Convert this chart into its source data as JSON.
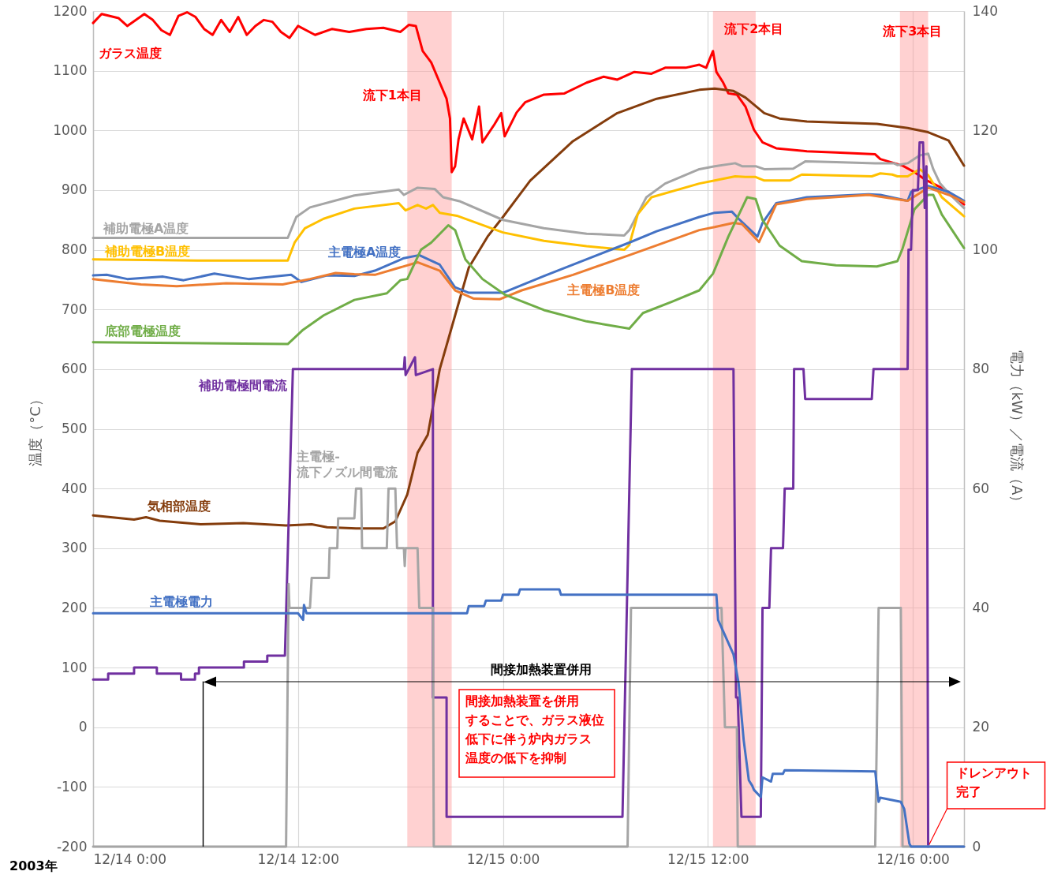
{
  "chart_data": {
    "type": "line",
    "ylabel": "温度（°C）",
    "y2label": "電力（kW）／電流（A）",
    "xlim": [
      "2003-12-14T00:00",
      "2003-12-16T03:00"
    ],
    "xticks": [
      {
        "value": "2003-12-14T00:00",
        "label": "12/14 0:00"
      },
      {
        "value": "2003-12-14T12:00",
        "label": "12/14 12:00"
      },
      {
        "value": "2003-12-15T00:00",
        "label": "12/15 0:00"
      },
      {
        "value": "2003-12-15T12:00",
        "label": "12/15 12:00"
      },
      {
        "value": "2003-12-16T00:00",
        "label": "12/16 0:00"
      }
    ],
    "ylim": [
      -200,
      1200
    ],
    "yticks": [
      -200,
      -100,
      0,
      100,
      200,
      300,
      400,
      500,
      600,
      700,
      800,
      900,
      1000,
      1100,
      1200
    ],
    "y2lim": [
      0,
      140
    ],
    "y2ticks": [
      0,
      20,
      40,
      60,
      80,
      100,
      120,
      140
    ],
    "grid": true,
    "series": [
      {
        "name": "ガラス温度",
        "color": "#ff0000",
        "x": [
          "2003-12-14T00:00",
          "2003-12-14T00:30",
          "2003-12-14T01:30",
          "2003-12-14T02:00",
          "2003-12-14T03:00",
          "2003-12-14T03:30",
          "2003-12-14T04:00",
          "2003-12-14T04:30",
          "2003-12-14T05:00",
          "2003-12-14T05:30",
          "2003-12-14T06:00",
          "2003-12-14T06:30",
          "2003-12-14T07:00",
          "2003-12-14T07:30",
          "2003-12-14T08:00",
          "2003-12-14T08:30",
          "2003-12-14T09:00",
          "2003-12-14T09:30",
          "2003-12-14T10:00",
          "2003-12-14T10:30",
          "2003-12-14T11:00",
          "2003-12-14T11:30",
          "2003-12-14T12:00",
          "2003-12-14T13:00",
          "2003-12-14T14:00",
          "2003-12-14T15:00",
          "2003-12-14T16:00",
          "2003-12-14T17:00",
          "2003-12-14T18:00",
          "2003-12-14T18:30",
          "2003-12-14T18:54",
          "2003-12-14T19:18",
          "2003-12-14T19:48",
          "2003-12-14T20:18",
          "2003-12-14T20:42",
          "2003-12-14T20:54",
          "2003-12-14T21:00",
          "2003-12-14T21:12",
          "2003-12-14T21:24",
          "2003-12-14T21:42",
          "2003-12-14T22:12",
          "2003-12-14T22:36",
          "2003-12-14T22:48",
          "2003-12-14T23:30",
          "2003-12-14T23:54",
          "2003-12-15T00:06",
          "2003-12-15T00:48",
          "2003-12-15T01:18",
          "2003-12-15T02:24",
          "2003-12-15T03:36",
          "2003-12-15T04:54",
          "2003-12-15T05:54",
          "2003-12-15T06:42",
          "2003-12-15T07:42",
          "2003-12-15T08:42",
          "2003-12-15T09:30",
          "2003-12-15T10:42",
          "2003-12-15T11:30",
          "2003-12-15T11:54",
          "2003-12-15T12:18",
          "2003-12-15T12:30",
          "2003-12-15T12:54",
          "2003-12-15T13:12",
          "2003-12-15T13:42",
          "2003-12-15T14:12",
          "2003-12-15T14:42",
          "2003-12-15T15:12",
          "2003-12-15T16:00",
          "2003-12-15T17:48",
          "2003-12-15T19:30",
          "2003-12-15T21:48",
          "2003-12-15T22:06",
          "2003-12-15T23:24",
          "2003-12-16T00:06",
          "2003-12-16T00:42",
          "2003-12-16T01:36",
          "2003-12-16T02:12",
          "2003-12-16T03:00"
        ],
        "values": [
          1180,
          1195,
          1188,
          1175,
          1195,
          1185,
          1168,
          1160,
          1192,
          1198,
          1190,
          1170,
          1160,
          1185,
          1165,
          1190,
          1160,
          1175,
          1185,
          1182,
          1165,
          1155,
          1175,
          1160,
          1170,
          1165,
          1170,
          1172,
          1165,
          1177,
          1175,
          1133,
          1114,
          1080,
          1053,
          1020,
          930,
          940,
          985,
          1020,
          985,
          1040,
          980,
          1010,
          1029,
          990,
          1030,
          1047,
          1060,
          1062,
          1080,
          1090,
          1085,
          1098,
          1095,
          1105,
          1105,
          1110,
          1105,
          1133,
          1098,
          1080,
          1062,
          1060,
          1040,
          1001,
          980,
          970,
          965,
          963,
          960,
          952,
          941,
          930,
          918,
          905,
          895,
          876
        ]
      },
      {
        "name": "気相部温度",
        "color": "#843c0c",
        "x": [
          "2003-12-14T00:00",
          "2003-12-14T02:24",
          "2003-12-14T03:06",
          "2003-12-14T03:54",
          "2003-12-14T06:18",
          "2003-12-14T08:48",
          "2003-12-14T11:18",
          "2003-12-14T12:48",
          "2003-12-14T13:42",
          "2003-12-14T15:24",
          "2003-12-14T17:00",
          "2003-12-14T17:42",
          "2003-12-14T18:24",
          "2003-12-14T19:00",
          "2003-12-14T19:36",
          "2003-12-14T20:18",
          "2003-12-14T21:12",
          "2003-12-14T22:00",
          "2003-12-14T23:06",
          "2003-12-15T00:00",
          "2003-12-15T01:36",
          "2003-12-15T04:06",
          "2003-12-15T06:42",
          "2003-12-15T09:00",
          "2003-12-15T11:30",
          "2003-12-15T12:24",
          "2003-12-15T13:30",
          "2003-12-15T14:12",
          "2003-12-15T15:18",
          "2003-12-15T16:12",
          "2003-12-15T17:48",
          "2003-12-15T21:54",
          "2003-12-15T23:42",
          "2003-12-16T00:54",
          "2003-12-16T02:06",
          "2003-12-16T03:00"
        ],
        "values": [
          355,
          348,
          352,
          346,
          340,
          342,
          338,
          340,
          335,
          333,
          333,
          345,
          390,
          460,
          490,
          600,
          690,
          770,
          822,
          855,
          916,
          982,
          1029,
          1053,
          1068,
          1070,
          1066,
          1055,
          1029,
          1020,
          1015,
          1011,
          1004,
          997,
          983,
          941
        ]
      },
      {
        "name": "補助電極A温度",
        "color": "#a5a5a5",
        "x": [
          "2003-12-14T00:00",
          "2003-12-14T11:24",
          "2003-12-14T11:54",
          "2003-12-14T12:42",
          "2003-12-14T15:18",
          "2003-12-14T17:54",
          "2003-12-14T18:12",
          "2003-12-14T19:00",
          "2003-12-14T20:00",
          "2003-12-14T20:30",
          "2003-12-14T21:30",
          "2003-12-15T00:00",
          "2003-12-15T02:24",
          "2003-12-15T04:54",
          "2003-12-15T07:06",
          "2003-12-15T07:24",
          "2003-12-15T08:24",
          "2003-12-15T09:30",
          "2003-12-15T11:30",
          "2003-12-15T12:24",
          "2003-12-15T13:36",
          "2003-12-15T14:00",
          "2003-12-15T14:48",
          "2003-12-15T15:18",
          "2003-12-15T17:00",
          "2003-12-15T17:42",
          "2003-12-15T19:30",
          "2003-12-15T21:48",
          "2003-12-15T22:54",
          "2003-12-15T23:06",
          "2003-12-15T23:42",
          "2003-12-16T00:24",
          "2003-12-16T00:54",
          "2003-12-16T01:12",
          "2003-12-16T01:36",
          "2003-12-16T02:12",
          "2003-12-16T03:00"
        ],
        "values": [
          820,
          820,
          855,
          871,
          891,
          901,
          892,
          904,
          902,
          888,
          881,
          850,
          836,
          827,
          824,
          833,
          888,
          911,
          935,
          940,
          945,
          940,
          940,
          935,
          936,
          948,
          947,
          945,
          945,
          942,
          945,
          958,
          961,
          935,
          911,
          892,
          870
        ]
      },
      {
        "name": "補助電極B温度",
        "color": "#ffc000",
        "x": [
          "2003-12-14T00:00",
          "2003-12-14T06:06",
          "2003-12-14T11:24",
          "2003-12-14T11:48",
          "2003-12-14T12:24",
          "2003-12-14T13:30",
          "2003-12-14T15:18",
          "2003-12-14T17:54",
          "2003-12-14T18:18",
          "2003-12-14T19:00",
          "2003-12-14T19:30",
          "2003-12-14T19:54",
          "2003-12-14T20:18",
          "2003-12-14T21:18",
          "2003-12-15T00:00",
          "2003-12-15T02:24",
          "2003-12-15T04:54",
          "2003-12-15T07:06",
          "2003-12-15T07:24",
          "2003-12-15T07:54",
          "2003-12-15T08:42",
          "2003-12-15T11:30",
          "2003-12-15T12:24",
          "2003-12-15T13:36",
          "2003-12-15T14:12",
          "2003-12-15T14:48",
          "2003-12-15T15:18",
          "2003-12-15T16:48",
          "2003-12-15T17:30",
          "2003-12-15T21:36",
          "2003-12-15T22:06",
          "2003-12-15T22:48",
          "2003-12-15T23:06",
          "2003-12-15T23:42",
          "2003-12-16T00:24",
          "2003-12-16T00:54",
          "2003-12-16T01:42",
          "2003-12-16T03:00"
        ],
        "values": [
          784,
          782,
          782,
          812,
          836,
          852,
          869,
          878,
          866,
          875,
          869,
          875,
          862,
          857,
          829,
          815,
          806,
          800,
          808,
          860,
          888,
          911,
          916,
          923,
          922,
          922,
          916,
          916,
          926,
          923,
          928,
          926,
          923,
          923,
          935,
          925,
          888,
          856
        ]
      },
      {
        "name": "主電極A温度",
        "color": "#4472c4",
        "x": [
          "2003-12-14T00:00",
          "2003-12-14T00:48",
          "2003-12-14T02:00",
          "2003-12-14T04:06",
          "2003-12-14T05:18",
          "2003-12-14T07:06",
          "2003-12-14T09:06",
          "2003-12-14T11:36",
          "2003-12-14T12:12",
          "2003-12-14T13:42",
          "2003-12-14T15:18",
          "2003-12-14T16:30",
          "2003-12-14T18:12",
          "2003-12-14T19:06",
          "2003-12-14T20:18",
          "2003-12-14T21:12",
          "2003-12-14T22:00",
          "2003-12-15T00:00",
          "2003-12-15T02:24",
          "2003-12-15T04:54",
          "2003-12-15T07:24",
          "2003-12-15T09:00",
          "2003-12-15T11:30",
          "2003-12-15T12:24",
          "2003-12-15T13:24",
          "2003-12-15T13:48",
          "2003-12-15T14:54",
          "2003-12-15T15:12",
          "2003-12-15T16:00",
          "2003-12-15T17:48",
          "2003-12-15T21:24",
          "2003-12-15T22:06",
          "2003-12-15T23:42",
          "2003-12-15T23:54",
          "2003-12-16T00:54",
          "2003-12-16T02:06",
          "2003-12-16T03:00"
        ],
        "values": [
          757,
          758,
          751,
          755,
          749,
          760,
          751,
          758,
          746,
          757,
          756,
          765,
          786,
          791,
          775,
          737,
          728,
          728,
          756,
          784,
          812,
          831,
          855,
          862,
          864,
          852,
          822,
          845,
          878,
          888,
          893,
          892,
          882,
          897,
          907,
          897,
          882
        ]
      },
      {
        "name": "主電極B温度",
        "color": "#ed7d31",
        "x": [
          "2003-12-14T00:00",
          "2003-12-14T02:48",
          "2003-12-14T04:54",
          "2003-12-14T07:48",
          "2003-12-14T11:06",
          "2003-12-14T12:42",
          "2003-12-14T14:12",
          "2003-12-14T15:18",
          "2003-12-14T16:30",
          "2003-12-14T19:00",
          "2003-12-14T20:18",
          "2003-12-14T21:12",
          "2003-12-14T22:18",
          "2003-12-14T23:48",
          "2003-12-15T01:06",
          "2003-12-15T04:06",
          "2003-12-15T07:24",
          "2003-12-15T11:30",
          "2003-12-15T12:24",
          "2003-12-15T13:30",
          "2003-12-15T14:00",
          "2003-12-15T15:00",
          "2003-12-15T16:00",
          "2003-12-15T17:48",
          "2003-12-15T21:24",
          "2003-12-15T23:42",
          "2003-12-16T00:54",
          "2003-12-16T02:06",
          "2003-12-16T03:00"
        ],
        "values": [
          751,
          742,
          739,
          744,
          742,
          751,
          761,
          759,
          758,
          779,
          765,
          732,
          718,
          717,
          732,
          758,
          791,
          833,
          838,
          845,
          843,
          813,
          876,
          885,
          892,
          882,
          904,
          892,
          880
        ]
      },
      {
        "name": "底部電極温度",
        "color": "#70ad47",
        "x": [
          "2003-12-14T00:00",
          "2003-12-14T11:24",
          "2003-12-14T12:18",
          "2003-12-14T13:30",
          "2003-12-14T15:18",
          "2003-12-14T17:12",
          "2003-12-14T18:00",
          "2003-12-14T18:24",
          "2003-12-14T19:12",
          "2003-12-14T19:48",
          "2003-12-14T20:48",
          "2003-12-14T21:12",
          "2003-12-14T21:48",
          "2003-12-14T22:48",
          "2003-12-15T00:06",
          "2003-12-15T02:24",
          "2003-12-15T04:54",
          "2003-12-15T07:24",
          "2003-12-15T08:12",
          "2003-12-15T09:54",
          "2003-12-15T11:30",
          "2003-12-15T12:18",
          "2003-12-15T13:12",
          "2003-12-15T14:18",
          "2003-12-15T14:48",
          "2003-12-15T15:12",
          "2003-12-15T16:12",
          "2003-12-15T17:30",
          "2003-12-15T19:30",
          "2003-12-15T21:54",
          "2003-12-15T23:06",
          "2003-12-15T23:24",
          "2003-12-16T00:06",
          "2003-12-16T00:54",
          "2003-12-16T01:12",
          "2003-12-16T01:42",
          "2003-12-16T03:00"
        ],
        "values": [
          645,
          642,
          666,
          690,
          716,
          727,
          749,
          751,
          800,
          812,
          841,
          833,
          784,
          751,
          725,
          699,
          680,
          668,
          694,
          713,
          732,
          760,
          822,
          888,
          885,
          850,
          807,
          781,
          774,
          772,
          781,
          802,
          868,
          892,
          892,
          859,
          803
        ]
      },
      {
        "name": "補助電極間電流",
        "color": "#7030a0",
        "axis": "y2",
        "x": [
          "2003-12-14T00:00",
          "2003-12-14T00:53",
          "2003-12-14T00:53",
          "2003-12-14T02:24",
          "2003-12-14T02:24",
          "2003-12-14T03:44",
          "2003-12-14T03:44",
          "2003-12-14T05:09",
          "2003-12-14T05:09",
          "2003-12-14T05:58",
          "2003-12-14T05:58",
          "2003-12-14T06:12",
          "2003-12-14T06:12",
          "2003-12-14T08:50",
          "2003-12-14T08:50",
          "2003-12-14T10:12",
          "2003-12-14T10:12",
          "2003-12-14T11:14",
          "2003-12-14T11:42",
          "2003-12-14T18:12",
          "2003-12-14T18:15",
          "2003-12-14T18:18",
          "2003-12-14T18:51",
          "2003-12-14T18:54",
          "2003-12-14T19:54",
          "2003-12-14T19:54",
          "2003-12-14T20:42",
          "2003-12-14T20:42",
          "2003-12-15T07:00",
          "2003-12-15T07:33",
          "2003-12-15T13:30",
          "2003-12-15T13:39",
          "2003-12-15T13:45",
          "2003-12-15T13:58",
          "2003-12-15T15:06",
          "2003-12-15T15:12",
          "2003-12-15T15:36",
          "2003-12-15T15:42",
          "2003-12-15T16:24",
          "2003-12-15T16:30",
          "2003-12-15T17:00",
          "2003-12-15T17:03",
          "2003-12-15T17:36",
          "2003-12-15T17:42",
          "2003-12-15T21:36",
          "2003-12-15T21:42",
          "2003-12-15T23:42",
          "2003-12-15T23:45",
          "2003-12-15T23:54",
          "2003-12-16T00:00",
          "2003-12-16T00:18",
          "2003-12-16T00:24",
          "2003-12-16T00:36",
          "2003-12-16T00:42",
          "2003-12-16T00:48",
          "2003-12-16T00:54"
        ],
        "values": [
          28,
          28,
          29,
          29,
          30,
          30,
          29,
          29,
          28,
          28,
          29,
          29,
          30,
          30,
          31,
          31,
          32,
          32,
          80,
          80,
          82,
          79,
          82,
          79,
          80,
          25,
          25,
          5,
          5,
          80,
          80,
          25,
          25,
          5,
          5,
          40,
          40,
          50,
          50,
          60,
          60,
          80,
          80,
          75,
          75,
          80,
          80,
          100,
          100,
          110,
          110,
          118,
          118,
          107,
          114,
          0
        ]
      },
      {
        "name": "主電極-流下ノズル間電流",
        "color": "#a5a5a5",
        "axis": "y2",
        "x": [
          "2003-12-14T00:00",
          "2003-12-14T11:18",
          "2003-12-14T11:27",
          "2003-12-14T11:30",
          "2003-12-14T11:36",
          "2003-12-14T12:42",
          "2003-12-14T12:48",
          "2003-12-14T13:48",
          "2003-12-14T13:51",
          "2003-12-14T14:18",
          "2003-12-14T14:21",
          "2003-12-14T15:18",
          "2003-12-14T15:24",
          "2003-12-14T15:42",
          "2003-12-14T15:45",
          "2003-12-14T17:12",
          "2003-12-14T17:18",
          "2003-12-14T17:42",
          "2003-12-14T17:48",
          "2003-12-14T18:12",
          "2003-12-14T18:15",
          "2003-12-14T18:18",
          "2003-12-14T19:00",
          "2003-12-14T19:06",
          "2003-12-14T19:54",
          "2003-12-14T19:57",
          "2003-12-15T07:18",
          "2003-12-15T07:30",
          "2003-12-15T12:48",
          "2003-12-15T13:00",
          "2003-12-15T13:42",
          "2003-12-15T13:45",
          "2003-12-15T21:48",
          "2003-12-15T22:00",
          "2003-12-15T23:18",
          "2003-12-15T23:24",
          "2003-12-16T03:00"
        ],
        "values": [
          0,
          0,
          44,
          40,
          40,
          40,
          45,
          45,
          50,
          50,
          55,
          55,
          60,
          60,
          50,
          50,
          60,
          60,
          50,
          50,
          47,
          50,
          50,
          40,
          40,
          0,
          0,
          40,
          40,
          20,
          20,
          0,
          0,
          40,
          40,
          0,
          0
        ]
      },
      {
        "name": "主電極電力",
        "color": "#4472c4",
        "axis": "y2",
        "x": [
          "2003-12-14T00:00",
          "2003-12-14T12:00",
          "2003-12-14T12:18",
          "2003-12-14T12:21",
          "2003-12-14T12:30",
          "2003-12-14T21:54",
          "2003-12-14T22:00",
          "2003-12-14T22:54",
          "2003-12-14T23:00",
          "2003-12-14T23:54",
          "2003-12-15T00:00",
          "2003-12-15T00:54",
          "2003-12-15T01:00",
          "2003-12-15T03:18",
          "2003-12-15T03:24",
          "2003-12-15T12:30",
          "2003-12-15T12:36",
          "2003-12-15T13:30",
          "2003-12-15T13:48",
          "2003-12-15T14:06",
          "2003-12-15T14:24",
          "2003-12-15T14:36",
          "2003-12-15T14:42",
          "2003-12-15T15:06",
          "2003-12-15T15:12",
          "2003-12-15T15:42",
          "2003-12-15T15:48",
          "2003-12-15T16:24",
          "2003-12-15T16:30",
          "2003-12-15T21:48",
          "2003-12-15T22:00",
          "2003-12-15T22:06",
          "2003-12-15T23:18",
          "2003-12-15T23:30",
          "2003-12-15T23:48",
          "2003-12-15T23:54",
          "2003-12-16T03:00"
        ],
        "values": [
          39.1,
          39.1,
          38,
          40.5,
          39.1,
          39.1,
          40.3,
          40.3,
          41.2,
          41.2,
          42.2,
          42.2,
          43.1,
          43.1,
          42.2,
          42.2,
          38,
          32.2,
          27.4,
          17.8,
          11.1,
          10.2,
          9.5,
          8.3,
          11.6,
          10.9,
          12.2,
          12.2,
          12.8,
          12.6,
          7.5,
          8.2,
          7.5,
          6.3,
          0.5,
          0,
          0
        ]
      }
    ],
    "bands": [
      {
        "axis": "x",
        "from": "2003-12-14T18:24",
        "to": "2003-12-14T21:00",
        "label": "流下1本目",
        "color": "#ff9999"
      },
      {
        "axis": "x",
        "from": "2003-12-15T12:18",
        "to": "2003-12-15T14:48",
        "label": "流下2本目",
        "color": "#ff9999"
      },
      {
        "axis": "x",
        "from": "2003-12-15T23:15",
        "to": "2003-12-16T00:54",
        "label": "流下3本目",
        "color": "#ff9999"
      }
    ],
    "annotations": [
      "間接加熱装置併用",
      {
        "text": "ドレンアウト完了",
        "x": "2003-12-16T00:54",
        "y": -200
      },
      "間接加熱装置を併用することで、ガラス液位低下に伴う炉内ガラス温度の低下を抑制",
      "2003年"
    ]
  }
}
